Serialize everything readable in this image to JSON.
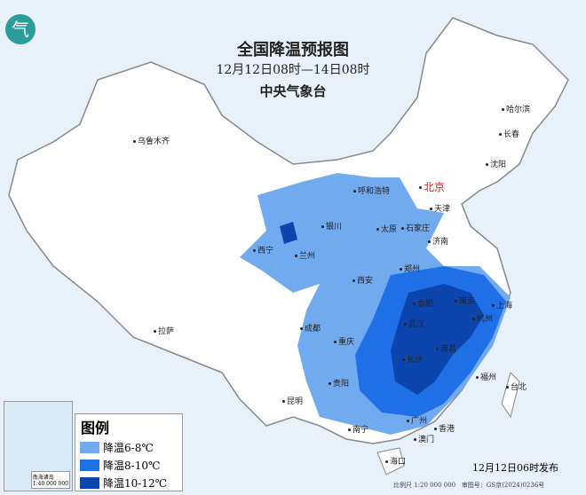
{
  "title": "全国降温预报图",
  "period": "12月12日08时—14日08时",
  "agency": "中央气象台",
  "colors": {
    "level1": "#72aaf0",
    "level2": "#1f6fe6",
    "level3": "#0b45ad",
    "land": "#ffffff",
    "sea": "#e8f1fa"
  },
  "legend": {
    "title": "图例",
    "items": [
      {
        "label": "降温6-8℃",
        "color": "#72aaf0"
      },
      {
        "label": "降温8-10℃",
        "color": "#1f6fe6"
      },
      {
        "label": "降温10-12℃",
        "color": "#0b45ad"
      }
    ]
  },
  "issued": "12月12日06时发布",
  "scale": "比例尺 1:20 000 000",
  "map_number": "审图号：GS京(2024)0236号",
  "inset": {
    "title": "南海诸岛",
    "scale": "1:40 000 000"
  },
  "capital": "北京",
  "cities": [
    "乌鲁木齐",
    "哈尔滨",
    "长春",
    "沈阳",
    "天津",
    "呼和浩特",
    "银川",
    "太原",
    "石家庄",
    "济南",
    "西宁",
    "兰州",
    "郑州",
    "西安",
    "合肥",
    "南京",
    "上海",
    "杭州",
    "武汉",
    "成都",
    "重庆",
    "长沙",
    "南昌",
    "贵阳",
    "福州",
    "台北",
    "昆明",
    "南宁",
    "广州",
    "澳门",
    "香港",
    "海口",
    "拉萨"
  ]
}
